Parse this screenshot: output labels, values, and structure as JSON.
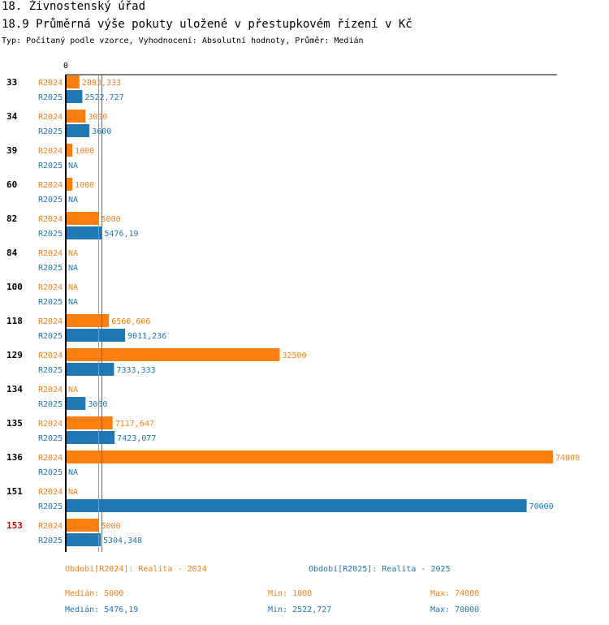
{
  "header": {
    "title": "18. Živnostenský úřad",
    "subtitle": "18.9 Průměrná výše pokuty uložené v přestupkovém řízení v Kč",
    "type_line": "Typ: Počítaný podle vzorce, Vyhodnocení: Absolutní hodnoty, Průměr: Medián"
  },
  "colors": {
    "r2024": "#ff7f0e",
    "r2025": "#1f77b4",
    "highlight": "#e00000"
  },
  "chart_data": {
    "type": "bar",
    "orientation": "horizontal",
    "axis_zero_label": "0",
    "xlim": [
      0,
      74000
    ],
    "series": [
      {
        "key": "r2024",
        "name": "R2024"
      },
      {
        "key": "r2025",
        "name": "R2025"
      }
    ],
    "groups": [
      {
        "label": "33",
        "highlight": false,
        "r2024": {
          "value": 2083.333,
          "text": "2083,333"
        },
        "r2025": {
          "value": 2522.727,
          "text": "2522,727"
        }
      },
      {
        "label": "34",
        "highlight": false,
        "r2024": {
          "value": 3000,
          "text": "3000"
        },
        "r2025": {
          "value": 3600,
          "text": "3600"
        }
      },
      {
        "label": "39",
        "highlight": false,
        "r2024": {
          "value": 1000,
          "text": "1000"
        },
        "r2025": {
          "value": null,
          "text": "NA"
        }
      },
      {
        "label": "60",
        "highlight": false,
        "r2024": {
          "value": 1000,
          "text": "1000"
        },
        "r2025": {
          "value": null,
          "text": "NA"
        }
      },
      {
        "label": "82",
        "highlight": false,
        "r2024": {
          "value": 5000,
          "text": "5000"
        },
        "r2025": {
          "value": 5476.19,
          "text": "5476,19"
        }
      },
      {
        "label": "84",
        "highlight": false,
        "r2024": {
          "value": null,
          "text": "NA"
        },
        "r2025": {
          "value": null,
          "text": "NA"
        }
      },
      {
        "label": "100",
        "highlight": false,
        "r2024": {
          "value": null,
          "text": "NA"
        },
        "r2025": {
          "value": null,
          "text": "NA"
        }
      },
      {
        "label": "118",
        "highlight": false,
        "r2024": {
          "value": 6560.606,
          "text": "6560,606"
        },
        "r2025": {
          "value": 9011.236,
          "text": "9011,236"
        }
      },
      {
        "label": "129",
        "highlight": false,
        "r2024": {
          "value": 32500,
          "text": "32500"
        },
        "r2025": {
          "value": 7333.333,
          "text": "7333,333"
        }
      },
      {
        "label": "134",
        "highlight": false,
        "r2024": {
          "value": null,
          "text": "NA"
        },
        "r2025": {
          "value": 3000,
          "text": "3000"
        }
      },
      {
        "label": "135",
        "highlight": false,
        "r2024": {
          "value": 7117.647,
          "text": "7117,647"
        },
        "r2025": {
          "value": 7423.077,
          "text": "7423,077"
        }
      },
      {
        "label": "136",
        "highlight": false,
        "r2024": {
          "value": 74000,
          "text": "74000"
        },
        "r2025": {
          "value": null,
          "text": "NA"
        }
      },
      {
        "label": "151",
        "highlight": false,
        "r2024": {
          "value": null,
          "text": "NA"
        },
        "r2025": {
          "value": 70000,
          "text": "70000"
        }
      },
      {
        "label": "153",
        "highlight": true,
        "r2024": {
          "value": 5000,
          "text": "5000"
        },
        "r2025": {
          "value": 5304.348,
          "text": "5304,348"
        }
      }
    ],
    "reference_lines": [
      {
        "series": "r2024",
        "name": "Medián",
        "value": 5000
      },
      {
        "series": "r2025",
        "name": "Medián",
        "value": 5476.19
      }
    ]
  },
  "legend": {
    "r2024": {
      "period": "Období[R2024]: Realita - 2024",
      "median": "Medián: 5000",
      "min": "Min: 1000",
      "max": "Max: 74000"
    },
    "r2025": {
      "period": "Období[R2025]: Realita - 2025",
      "median": "Medián: 5476,19",
      "min": "Min: 2522,727",
      "max": "Max: 70000"
    }
  }
}
